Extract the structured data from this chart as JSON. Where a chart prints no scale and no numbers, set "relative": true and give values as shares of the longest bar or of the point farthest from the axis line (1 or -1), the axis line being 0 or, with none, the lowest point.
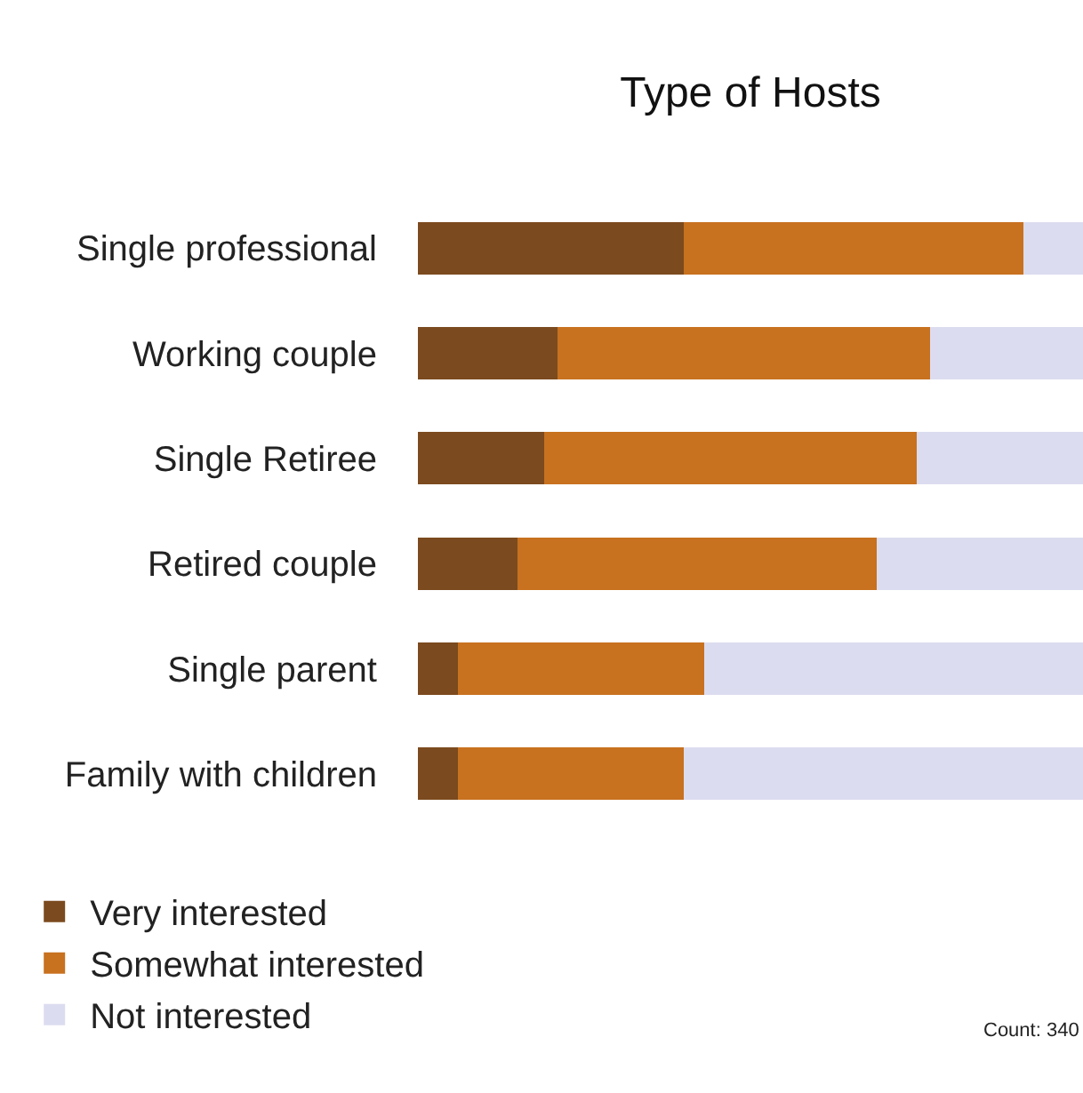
{
  "chart_data": {
    "type": "bar",
    "title": "Type of Hosts",
    "orientation": "horizontal",
    "stacked": true,
    "relative": true,
    "legend": "bottom",
    "categories": [
      "Single professional",
      "Working couple",
      "Single Retiree",
      "Retired couple",
      "Single parent",
      "Family with children"
    ],
    "series": [
      {
        "name": "Very interested",
        "color": "#7b4a1e",
        "values": [
          0.4,
          0.21,
          0.19,
          0.15,
          0.06,
          0.06
        ]
      },
      {
        "name": "Somewhat interested",
        "color": "#c8711f",
        "values": [
          0.51,
          0.56,
          0.56,
          0.54,
          0.37,
          0.34
        ]
      },
      {
        "name": "Not interested",
        "color": "#dcdcf0",
        "values": [
          0.09,
          0.23,
          0.25,
          0.31,
          0.57,
          0.6
        ]
      }
    ],
    "annotations": [
      "Count: 340"
    ]
  }
}
